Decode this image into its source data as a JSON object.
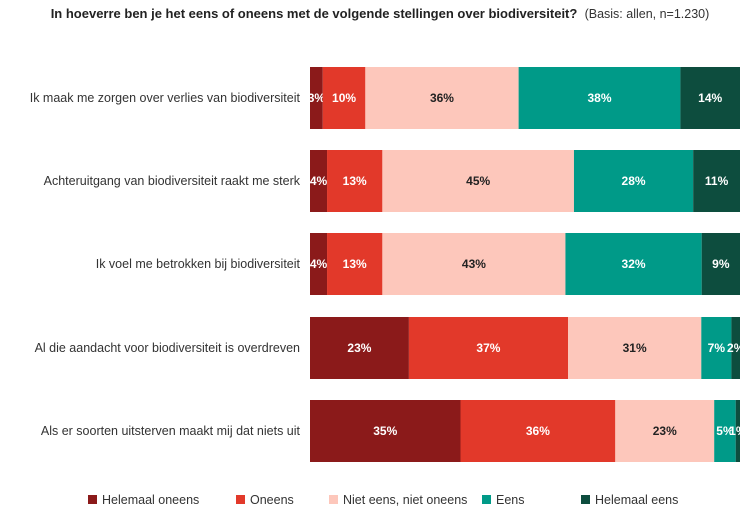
{
  "chart_data": {
    "type": "bar",
    "orientation": "horizontal",
    "stacked": true,
    "title": "In hoeverre ben je het eens of oneens met de volgende stellingen over biodiversiteit?",
    "subtitle": "(Basis: allen, n=1.230)",
    "categories": [
      "Ik maak me zorgen over verlies van biodiversiteit",
      "Achteruitgang van biodiversiteit raakt me sterk",
      "Ik voel me betrokken bij biodiversiteit",
      "Al die aandacht voor biodiversiteit is overdreven",
      "Als er soorten uitsterven maakt mij dat niets uit"
    ],
    "series": [
      {
        "name": "Helemaal oneens",
        "color": "#8B1A1A",
        "label_color": "#ffffff",
        "values": [
          3,
          4,
          4,
          23,
          35
        ]
      },
      {
        "name": "Oneens",
        "color": "#E2392A",
        "label_color": "#ffffff",
        "values": [
          10,
          13,
          13,
          37,
          36
        ]
      },
      {
        "name": "Niet eens, niet oneens",
        "color": "#FDC7BB",
        "label_color": "#222222",
        "values": [
          36,
          45,
          43,
          31,
          23
        ]
      },
      {
        "name": "Eens",
        "color": "#009A88",
        "label_color": "#ffffff",
        "values": [
          38,
          28,
          32,
          7,
          5
        ]
      },
      {
        "name": "Helemaal eens",
        "color": "#0D4D3E",
        "label_color": "#ffffff",
        "values": [
          14,
          11,
          9,
          2,
          1
        ]
      }
    ],
    "value_suffix": "%",
    "legend_position": "bottom",
    "grid": false
  }
}
